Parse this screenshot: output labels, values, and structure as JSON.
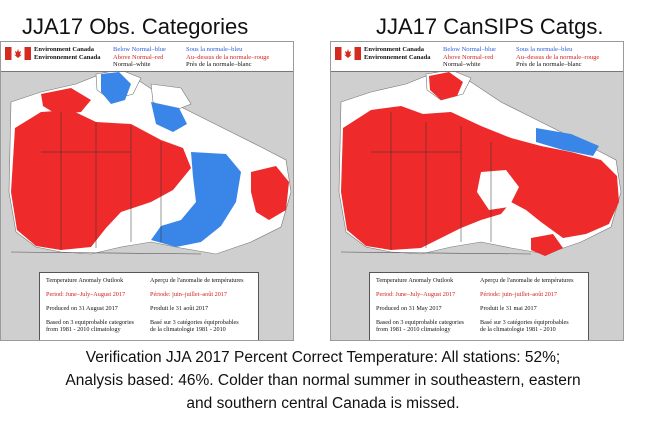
{
  "titles": {
    "left": "JJA17 Obs. Categories",
    "right": "JJA17 CanSIPS Catgs."
  },
  "agency": {
    "en": "Environment Canada",
    "fr": "Environnement Canada"
  },
  "legend": {
    "below_en": "Below Normal–blue",
    "below_fr": "Sous la normale–bleu",
    "above_en": "Above Normal–red",
    "above_fr": "Au–dessus de la normale–rouge",
    "normal_en": "Normal–white",
    "normal_fr": "Près de la normale–blanc"
  },
  "colors": {
    "above": "#ee2a2a",
    "below": "#3a86e8",
    "normal": "#ffffff",
    "land": "#cfcfcf"
  },
  "left_map": {
    "info": {
      "title_en": "Temperature Anomaly Outlook",
      "title_fr": "Aperçu de l'anomalie de températures",
      "period_en": "Period: June–July–August 2017",
      "period_fr": "Période: juin–juillet–août 2017",
      "produced_en": "Produced on 31 August 2017",
      "produced_fr": "Produit le 31 août 2017",
      "basis_en_1": "Based on 3 equiprobable categories",
      "basis_en_2": "from 1981 - 2010 climatology",
      "basis_fr_1": "Basé sur 3 catégories équiprobables",
      "basis_fr_2": "de la climatologie 1981 - 2010"
    }
  },
  "right_map": {
    "info": {
      "title_en": "Temperature Anomaly Outlook",
      "title_fr": "Aperçu de l'anomalie de températures",
      "period_en": "Period: June–July–August 2017",
      "period_fr": "Période: juin–juillet–août 2017",
      "produced_en": "Produced on 31 May 2017",
      "produced_fr": "Produit le 31 mai 2017",
      "basis_en_1": "Based on 3 equiprobable categories",
      "basis_en_2": "from 1981 - 2010 climatology",
      "basis_fr_1": "Basé sur 3 catégories équiprobables",
      "basis_fr_2": "de la climatologie 1981 - 2010"
    }
  },
  "caption": {
    "line1": "Verification JJA 2017 Percent Correct Temperature: All stations: 52%;",
    "line2": "Analysis based: 46%. Colder than normal summer in southeastern, eastern",
    "line3": "and southern central Canada is missed."
  }
}
